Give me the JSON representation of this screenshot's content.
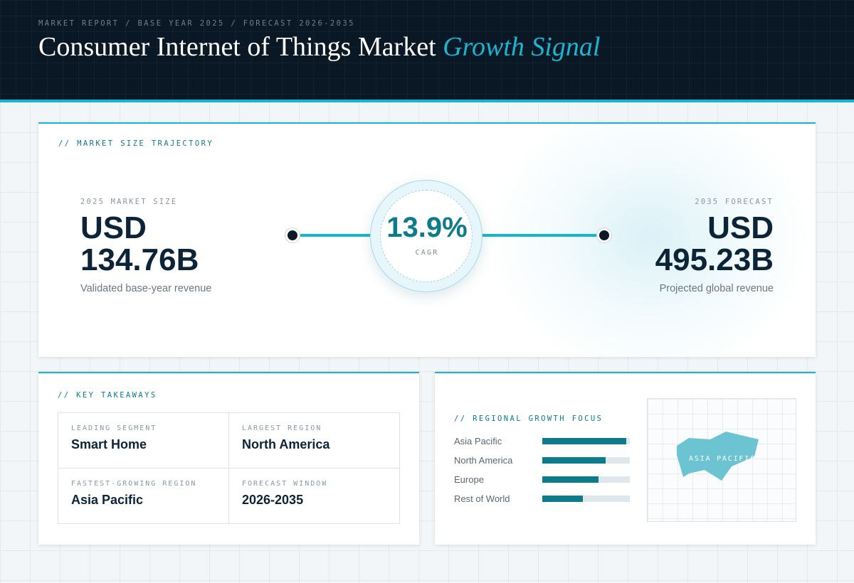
{
  "header": {
    "breadcrumb": "MARKET REPORT / BASE YEAR 2025 / FORECAST 2026-2035",
    "title_main": "Consumer Internet of Things Market",
    "title_accent": "Growth Signal"
  },
  "trajectory": {
    "section_label": "// MARKET SIZE TRAJECTORY",
    "start": {
      "label": "2025 MARKET SIZE",
      "currency": "USD",
      "amount": "134.76B",
      "caption": "Validated base-year revenue"
    },
    "end": {
      "label": "2035 FORECAST",
      "currency": "USD",
      "amount": "495.23B",
      "caption": "Projected global revenue"
    },
    "cagr": {
      "value": "13.9%",
      "label": "CAGR"
    }
  },
  "takeaways": {
    "section_label": "// KEY TAKEAWAYS",
    "items": [
      {
        "label": "LEADING SEGMENT",
        "value": "Smart Home"
      },
      {
        "label": "LARGEST REGION",
        "value": "North America"
      },
      {
        "label": "FASTEST-GROWING REGION",
        "value": "Asia Pacific"
      },
      {
        "label": "FORECAST WINDOW",
        "value": "2026-2035"
      }
    ]
  },
  "regional": {
    "section_label": "// REGIONAL GROWTH FOCUS",
    "bars": [
      {
        "region": "Asia Pacific",
        "level": 0.96
      },
      {
        "region": "North America",
        "level": 0.72
      },
      {
        "region": "Europe",
        "level": 0.64
      },
      {
        "region": "Rest of World",
        "level": 0.46
      }
    ],
    "map_label": "ASIA PACIFIC"
  },
  "colors": {
    "accent": "#16b6d0",
    "teal": "#0d7b8c",
    "navy": "#0a1825",
    "map_fill": "#6cc4d2"
  }
}
